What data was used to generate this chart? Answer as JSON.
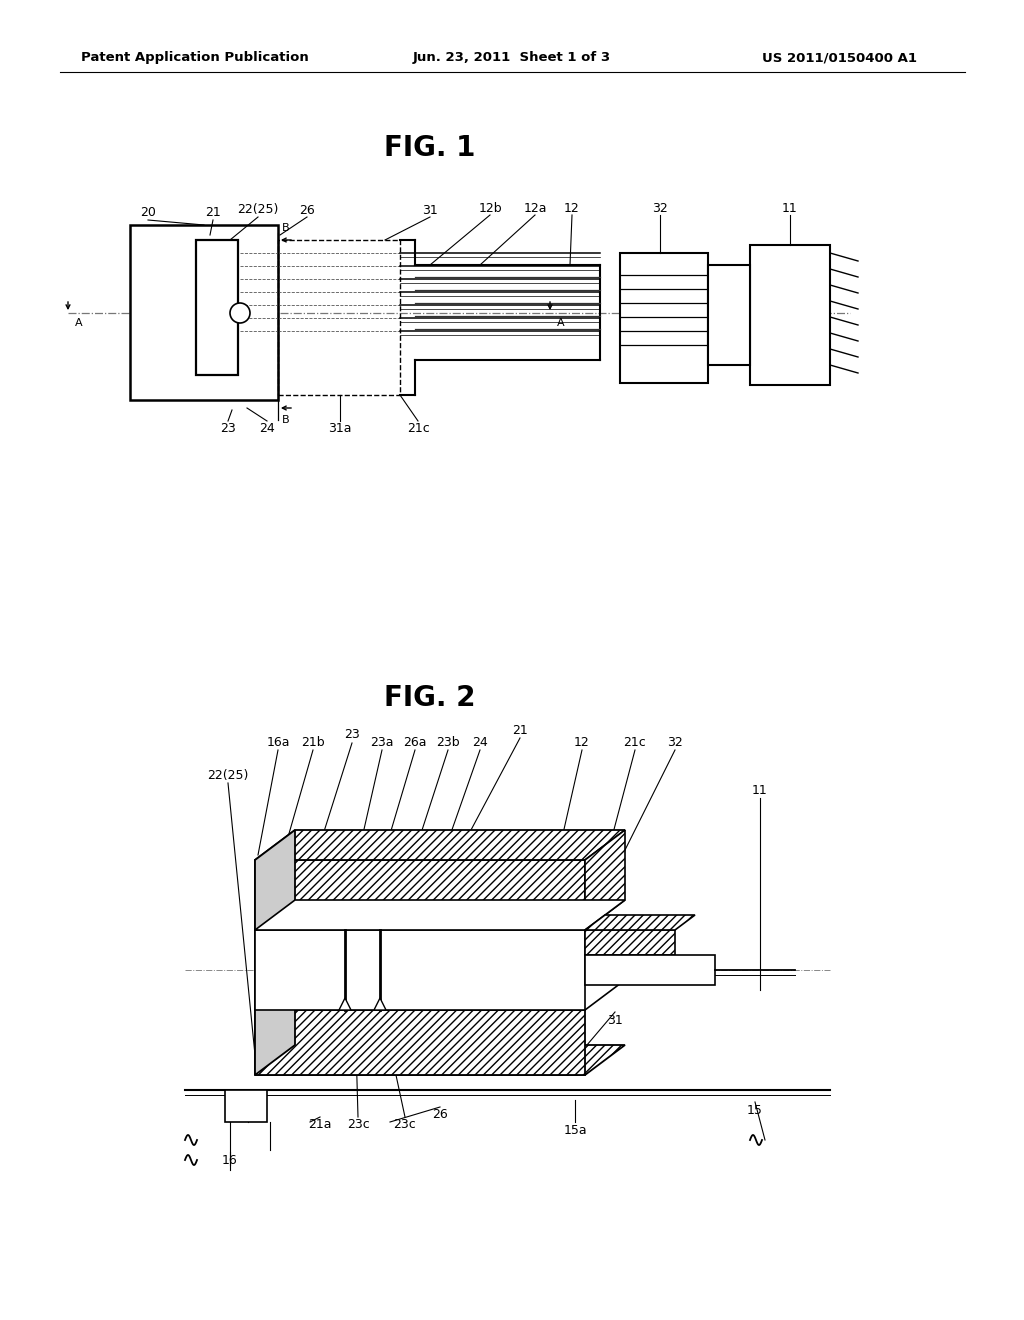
{
  "background_color": "#ffffff",
  "header_left": "Patent Application Publication",
  "header_center": "Jun. 23, 2011  Sheet 1 of 3",
  "header_right": "US 2011/0150400 A1",
  "fig1_title": "FIG. 1",
  "fig2_title": "FIG. 2",
  "line_color": "#000000",
  "label_fontsize": 9,
  "title_fontsize": 20,
  "header_fontsize": 9.5
}
